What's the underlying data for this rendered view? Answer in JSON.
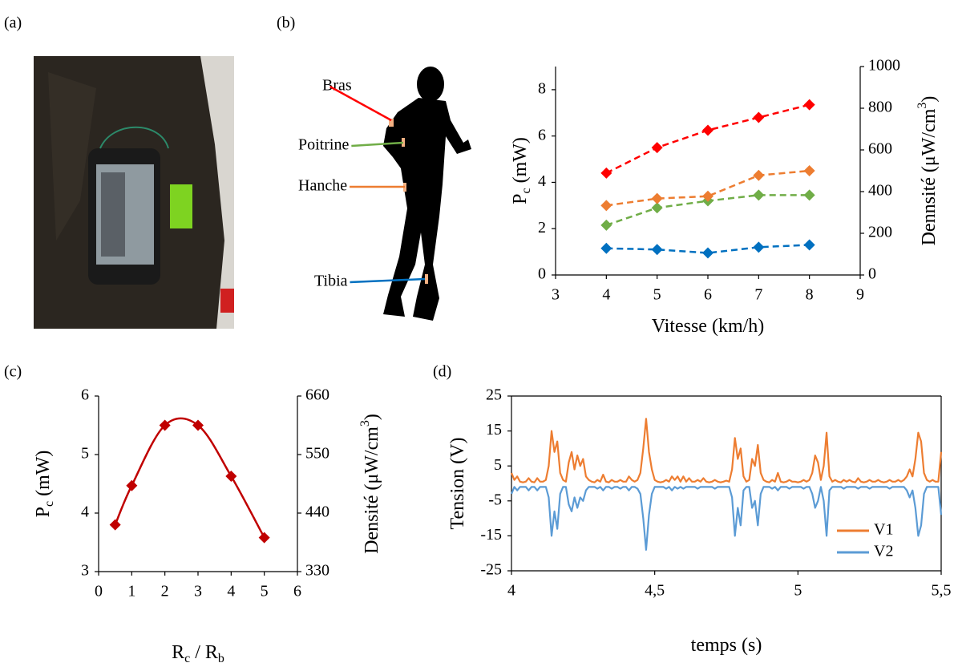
{
  "panel_labels": [
    "(a)",
    "(b)",
    "(c)",
    "(d)"
  ],
  "chart_data": [
    {
      "type": "line",
      "marker": "diamond",
      "line_style": "dashed",
      "x": [
        4,
        5,
        6,
        7,
        8
      ],
      "series": [
        {
          "name": "Bras",
          "color": "#ff0000",
          "values": [
            4.4,
            5.5,
            6.25,
            6.8,
            7.35
          ]
        },
        {
          "name": "Poitrine",
          "color": "#70ad47",
          "values": [
            2.15,
            2.9,
            3.2,
            3.45,
            3.45
          ]
        },
        {
          "name": "Hanche",
          "color": "#ed7d31",
          "values": [
            3.0,
            3.3,
            3.4,
            4.3,
            4.5
          ]
        },
        {
          "name": "Tibia",
          "color": "#0070c0",
          "values": [
            1.15,
            1.1,
            0.95,
            1.2,
            1.3
          ]
        }
      ],
      "xlim": [
        3,
        9
      ],
      "xticks": [
        3,
        4,
        5,
        6,
        7,
        8,
        9
      ],
      "ylim": [
        0,
        9
      ],
      "yticks": [
        0,
        2,
        4,
        6,
        8
      ],
      "y2lim": [
        0,
        1000
      ],
      "y2ticks": [
        0,
        200,
        400,
        600,
        800,
        1000
      ],
      "xlabel": [
        {
          "text": "Vitesse (km/h)"
        }
      ],
      "ylabel": [
        {
          "text": "P"
        },
        {
          "text": "c",
          "script": "sub"
        },
        {
          "text": " (mW)"
        }
      ],
      "y2label": [
        {
          "text": "Dennsité (μW/cm"
        },
        {
          "text": "3",
          "script": "sup"
        },
        {
          "text": ")"
        }
      ]
    },
    {
      "type": "line",
      "marker": "diamond",
      "smooth": true,
      "color": "#c00000",
      "x": [
        0.5,
        1,
        2,
        3,
        4,
        5
      ],
      "series": [
        {
          "values": [
            3.8,
            4.47,
            5.5,
            5.5,
            4.63,
            3.58
          ]
        }
      ],
      "xlim": [
        0,
        6
      ],
      "xticks": [
        0,
        1,
        2,
        3,
        4,
        5,
        6
      ],
      "ylim": [
        3,
        6
      ],
      "yticks": [
        3,
        4,
        5,
        6
      ],
      "y2lim": [
        330,
        660
      ],
      "y2ticks": [
        330,
        440,
        550,
        660
      ],
      "xlabel": [
        {
          "text": "R"
        },
        {
          "text": "c",
          "script": "sub"
        },
        {
          "text": " / R"
        },
        {
          "text": "b",
          "script": "sub"
        }
      ],
      "ylabel": [
        {
          "text": "P"
        },
        {
          "text": "c",
          "script": "sub"
        },
        {
          "text": " (mW)"
        }
      ],
      "y2label": [
        {
          "text": "Densité (μW/cm"
        },
        {
          "text": "3",
          "script": "sup"
        },
        {
          "text": ")"
        }
      ]
    },
    {
      "type": "line",
      "legend": "lower right",
      "x": [
        4,
        4.01,
        4.02,
        4.03,
        4.04,
        4.05,
        4.06,
        4.07,
        4.08,
        4.09,
        4.1,
        4.11,
        4.12,
        4.13,
        4.14,
        4.15,
        4.16,
        4.17,
        4.18,
        4.19,
        4.2,
        4.21,
        4.22,
        4.23,
        4.24,
        4.25,
        4.26,
        4.27,
        4.28,
        4.29,
        4.3,
        4.31,
        4.32,
        4.33,
        4.34,
        4.35,
        4.36,
        4.37,
        4.38,
        4.39,
        4.4,
        4.41,
        4.42,
        4.43,
        4.44,
        4.45,
        4.46,
        4.47,
        4.48,
        4.49,
        4.5,
        4.51,
        4.52,
        4.53,
        4.54,
        4.55,
        4.56,
        4.57,
        4.58,
        4.59,
        4.6,
        4.61,
        4.62,
        4.63,
        4.64,
        4.65,
        4.66,
        4.67,
        4.68,
        4.69,
        4.7,
        4.71,
        4.72,
        4.73,
        4.74,
        4.75,
        4.76,
        4.77,
        4.78,
        4.79,
        4.8,
        4.81,
        4.82,
        4.83,
        4.84,
        4.85,
        4.86,
        4.87,
        4.88,
        4.89,
        4.9,
        4.91,
        4.92,
        4.93,
        4.94,
        4.95,
        4.96,
        4.97,
        4.98,
        4.99,
        5,
        5.01,
        5.02,
        5.03,
        5.04,
        5.05,
        5.06,
        5.07,
        5.08,
        5.09,
        5.1,
        5.11,
        5.12,
        5.13,
        5.14,
        5.15,
        5.16,
        5.17,
        5.18,
        5.19,
        5.2,
        5.21,
        5.22,
        5.23,
        5.24,
        5.25,
        5.26,
        5.27,
        5.28,
        5.29,
        5.3,
        5.31,
        5.32,
        5.33,
        5.34,
        5.35,
        5.36,
        5.37,
        5.38,
        5.39,
        5.4,
        5.41,
        5.42,
        5.43,
        5.44,
        5.45,
        5.46,
        5.47,
        5.48,
        5.49,
        5.5
      ],
      "series": [
        {
          "name": "V1",
          "color": "#ed7d31",
          "values": [
            3,
            1,
            2,
            0.5,
            0.3,
            0.5,
            1.5,
            0.5,
            0.3,
            1.5,
            0.5,
            0.5,
            1,
            5,
            15,
            9,
            12,
            3,
            1,
            0.5,
            6,
            9,
            4,
            8,
            5,
            7,
            2,
            1,
            0.5,
            0.3,
            1,
            0.5,
            2.5,
            0.5,
            0.3,
            1,
            0.5,
            0.5,
            1,
            0.5,
            0.5,
            2,
            1,
            0.5,
            1,
            3,
            10,
            18.5,
            9,
            4,
            1,
            0.5,
            0.3,
            0.5,
            1,
            0.5,
            2,
            1,
            2,
            0.5,
            2,
            0.5,
            1.5,
            0.5,
            0.5,
            1,
            0.5,
            1.5,
            0.5,
            0.3,
            0.5,
            1,
            0.5,
            0.3,
            0.5,
            0.8,
            0.5,
            4,
            13,
            7,
            10,
            2,
            0.5,
            1,
            7,
            5,
            11,
            3,
            1,
            0.5,
            0.3,
            1,
            0.5,
            3,
            0.5,
            0.3,
            0.5,
            1,
            0.5,
            0.5,
            0.3,
            0.5,
            1,
            0.5,
            1,
            3,
            8,
            6,
            1,
            5,
            14.5,
            2,
            0.5,
            1,
            0.5,
            0.3,
            1,
            0.5,
            1,
            0.5,
            0.3,
            1.5,
            0.5,
            0.3,
            0.5,
            1,
            0.5,
            0.5,
            1,
            0.5,
            0.3,
            0.5,
            1,
            0.5,
            0.5,
            1,
            0.5,
            1,
            2,
            4,
            2,
            7,
            14.5,
            12,
            3,
            1,
            0.5,
            1,
            0.5,
            0.5,
            9
          ]
        },
        {
          "name": "V2",
          "color": "#5b9bd5",
          "values": [
            -3,
            -1,
            -2,
            -1,
            -1,
            -1,
            -2,
            -1,
            -1,
            -2,
            -1,
            -1,
            -1,
            -4,
            -15,
            -8,
            -13,
            -3,
            -1,
            -1,
            -6,
            -8,
            -4,
            -7,
            -4,
            -5,
            -2,
            -1,
            -1,
            -1,
            -1.5,
            -1,
            -2,
            -1,
            -1,
            -1.5,
            -1,
            -1,
            -1.5,
            -1,
            -1,
            -2,
            -1,
            -1,
            -1.5,
            -3,
            -10,
            -19,
            -9,
            -3,
            -1,
            -1,
            -1,
            -1,
            -1.5,
            -1,
            -2,
            -1,
            -1.5,
            -1,
            -1.5,
            -1,
            -1,
            -1,
            -1,
            -1.5,
            -1,
            -1,
            -1,
            -1,
            -1,
            -1.5,
            -1,
            -1,
            -1,
            -1,
            -1,
            -4,
            -15,
            -7,
            -12,
            -2,
            -1,
            -1,
            -7,
            -5,
            -12,
            -3,
            -1,
            -1,
            -1,
            -1.5,
            -1,
            -2,
            -1,
            -1,
            -1,
            -1.5,
            -1,
            -1,
            -1,
            -1,
            -1.5,
            -1,
            -1,
            -3,
            -7,
            -5,
            -1,
            -5,
            -15,
            -2,
            -1,
            -1,
            -1,
            -1,
            -1.5,
            -1,
            -1,
            -1,
            -1,
            -1.5,
            -1,
            -1,
            -1,
            -1.5,
            -1,
            -1,
            -1,
            -1,
            -1,
            -1,
            -1.5,
            -1,
            -1,
            -1,
            -1,
            -1,
            -2,
            -4,
            -2,
            -7,
            -15,
            -12,
            -3,
            -1,
            -1,
            -1,
            -1,
            -1,
            -9
          ]
        }
      ],
      "xlim": [
        4,
        5.5
      ],
      "xticks": [
        4,
        {
          "value": 4.5,
          "label": "4,5"
        },
        5,
        {
          "value": 5.5,
          "label": "5,5"
        }
      ],
      "ylim": [
        -25,
        25
      ],
      "yticks": [
        -25,
        -15,
        -5,
        5,
        15,
        25
      ],
      "xlabel": [
        {
          "text": "temps (s)"
        }
      ],
      "ylabel": [
        {
          "text": "Tension  (V)"
        }
      ]
    }
  ]
}
